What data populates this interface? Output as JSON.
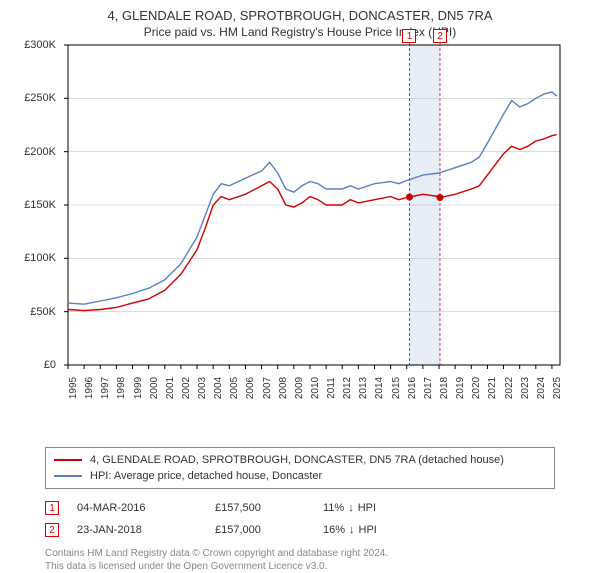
{
  "title": "4, GLENDALE ROAD, SPROTBROUGH, DONCASTER, DN5 7RA",
  "subtitle": "Price paid vs. HM Land Registry's House Price Index (HPI)",
  "chart": {
    "type": "line",
    "background_color": "#ffffff",
    "grid_color": "#bbbbbb",
    "axis_color": "#000000",
    "x_years": [
      1995,
      1996,
      1997,
      1998,
      1999,
      2000,
      2001,
      2002,
      2003,
      2004,
      2005,
      2006,
      2007,
      2008,
      2009,
      2010,
      2011,
      2012,
      2013,
      2014,
      2015,
      2016,
      2017,
      2018,
      2019,
      2020,
      2021,
      2022,
      2023,
      2024,
      2025
    ],
    "xlim": [
      1995,
      2025.5
    ],
    "ylim": [
      0,
      300000
    ],
    "ytick_step": 50000,
    "ytick_labels": [
      "£0",
      "£50K",
      "£100K",
      "£150K",
      "£200K",
      "£250K",
      "£300K"
    ],
    "tick_fontsize": 10,
    "line_width": 1.4,
    "highlight_fill": "#e8eef8",
    "highlight_dash": "#d00000",
    "series": [
      {
        "name": "property",
        "label": "4, GLENDALE ROAD, SPROTBROUGH, DONCASTER, DN5 7RA (detached house)",
        "color": "#d00000",
        "data": [
          [
            1995.0,
            52000
          ],
          [
            1996.0,
            51000
          ],
          [
            1997.0,
            52000
          ],
          [
            1998.0,
            54000
          ],
          [
            1999.0,
            58000
          ],
          [
            2000.0,
            62000
          ],
          [
            2001.0,
            70000
          ],
          [
            2002.0,
            85000
          ],
          [
            2003.0,
            108000
          ],
          [
            2003.5,
            128000
          ],
          [
            2004.0,
            150000
          ],
          [
            2004.5,
            158000
          ],
          [
            2005.0,
            155000
          ],
          [
            2006.0,
            160000
          ],
          [
            2007.0,
            168000
          ],
          [
            2007.5,
            172000
          ],
          [
            2008.0,
            165000
          ],
          [
            2008.5,
            150000
          ],
          [
            2009.0,
            148000
          ],
          [
            2009.5,
            152000
          ],
          [
            2010.0,
            158000
          ],
          [
            2010.5,
            155000
          ],
          [
            2011.0,
            150000
          ],
          [
            2012.0,
            150000
          ],
          [
            2012.5,
            155000
          ],
          [
            2013.0,
            152000
          ],
          [
            2014.0,
            155000
          ],
          [
            2015.0,
            158000
          ],
          [
            2015.5,
            155000
          ],
          [
            2016.0,
            157000
          ],
          [
            2016.17,
            157500
          ],
          [
            2017.0,
            160000
          ],
          [
            2018.0,
            158000
          ],
          [
            2018.06,
            157000
          ],
          [
            2019.0,
            160000
          ],
          [
            2020.0,
            165000
          ],
          [
            2020.5,
            168000
          ],
          [
            2021.0,
            178000
          ],
          [
            2022.0,
            198000
          ],
          [
            2022.5,
            205000
          ],
          [
            2023.0,
            202000
          ],
          [
            2023.5,
            205000
          ],
          [
            2024.0,
            210000
          ],
          [
            2024.5,
            212000
          ],
          [
            2025.0,
            215000
          ],
          [
            2025.3,
            216000
          ]
        ]
      },
      {
        "name": "hpi",
        "label": "HPI: Average price, detached house, Doncaster",
        "color": "#5b7fc7",
        "data": [
          [
            1995.0,
            58000
          ],
          [
            1996.0,
            57000
          ],
          [
            1997.0,
            60000
          ],
          [
            1998.0,
            63000
          ],
          [
            1999.0,
            67000
          ],
          [
            2000.0,
            72000
          ],
          [
            2001.0,
            80000
          ],
          [
            2002.0,
            95000
          ],
          [
            2003.0,
            120000
          ],
          [
            2003.5,
            140000
          ],
          [
            2004.0,
            160000
          ],
          [
            2004.5,
            170000
          ],
          [
            2005.0,
            168000
          ],
          [
            2006.0,
            175000
          ],
          [
            2007.0,
            182000
          ],
          [
            2007.5,
            190000
          ],
          [
            2008.0,
            180000
          ],
          [
            2008.5,
            165000
          ],
          [
            2009.0,
            162000
          ],
          [
            2009.5,
            168000
          ],
          [
            2010.0,
            172000
          ],
          [
            2010.5,
            170000
          ],
          [
            2011.0,
            165000
          ],
          [
            2012.0,
            165000
          ],
          [
            2012.5,
            168000
          ],
          [
            2013.0,
            165000
          ],
          [
            2014.0,
            170000
          ],
          [
            2015.0,
            172000
          ],
          [
            2015.5,
            170000
          ],
          [
            2016.0,
            173000
          ],
          [
            2017.0,
            178000
          ],
          [
            2018.0,
            180000
          ],
          [
            2019.0,
            185000
          ],
          [
            2020.0,
            190000
          ],
          [
            2020.5,
            195000
          ],
          [
            2021.0,
            208000
          ],
          [
            2022.0,
            235000
          ],
          [
            2022.5,
            248000
          ],
          [
            2023.0,
            242000
          ],
          [
            2023.5,
            245000
          ],
          [
            2024.0,
            250000
          ],
          [
            2024.5,
            254000
          ],
          [
            2025.0,
            256000
          ],
          [
            2025.3,
            252000
          ]
        ]
      }
    ],
    "sales_markers": [
      {
        "idx": "1",
        "x": 2016.17,
        "y": 157500
      },
      {
        "idx": "2",
        "x": 2018.06,
        "y": 157000
      }
    ],
    "marker_color": "#d00000",
    "marker_radius": 3.5
  },
  "legend": {
    "border_color": "#888888",
    "fontsize": 11,
    "items": [
      {
        "color": "#d00000",
        "label": "4, GLENDALE ROAD, SPROTBROUGH, DONCASTER, DN5 7RA (detached house)"
      },
      {
        "color": "#5b7fc7",
        "label": "HPI: Average price, detached house, Doncaster"
      }
    ]
  },
  "sales_table": {
    "idx_border_color": "#d00000",
    "arrow_glyph": "↓",
    "arrow_color": "#333333",
    "rows": [
      {
        "idx": "1",
        "date": "04-MAR-2016",
        "price": "£157,500",
        "diff_pct": "11%",
        "diff_vs": "HPI"
      },
      {
        "idx": "2",
        "date": "23-JAN-2018",
        "price": "£157,000",
        "diff_pct": "16%",
        "diff_vs": "HPI"
      }
    ]
  },
  "footer": {
    "line1": "Contains HM Land Registry data © Crown copyright and database right 2024.",
    "line2": "This data is licensed under the Open Government Licence v3.0.",
    "color": "#888888",
    "fontsize": 10
  }
}
